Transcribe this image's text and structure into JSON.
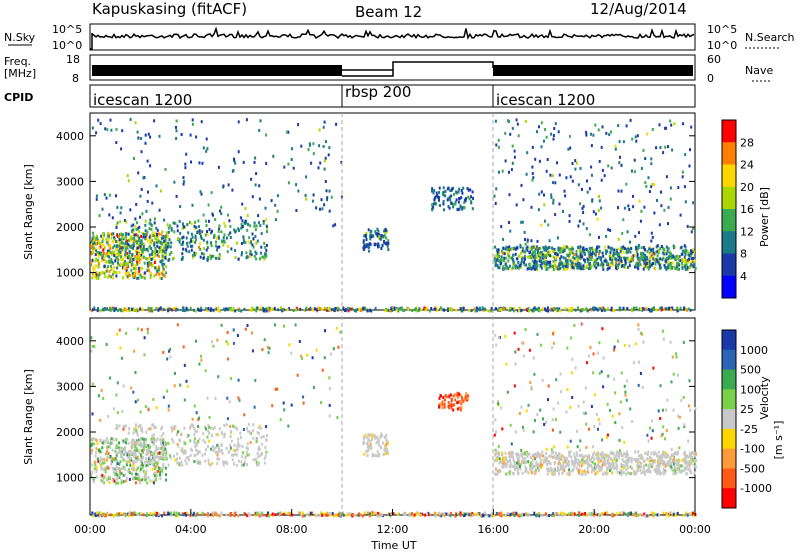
{
  "header": {
    "title": "Kapuskasing (fitACF)",
    "beam": "Beam 12",
    "date": "12/Aug/2014"
  },
  "noise_panel": {
    "left_label": "N.Sky",
    "right_label": "N.Search",
    "left_ticks": [
      "10^5",
      "10^0"
    ],
    "right_ticks": [
      "10^5",
      "10^0"
    ]
  },
  "freq_panel": {
    "left_label_1": "Freq.",
    "left_label_2": "[MHz]",
    "right_label": "Nave",
    "left_ticks": [
      "18",
      "8"
    ],
    "right_ticks": [
      "60",
      "0"
    ]
  },
  "cpid": {
    "label": "CPID",
    "segments": [
      {
        "name": "icescan 1200",
        "start_h": 0,
        "end_h": 10
      },
      {
        "name": "rbsp 200",
        "start_h": 10,
        "end_h": 16
      },
      {
        "name": "icescan 1200",
        "start_h": 16,
        "end_h": 24
      }
    ]
  },
  "x_axis": {
    "label": "Time UT",
    "ticks": [
      "00:00",
      "04:00",
      "08:00",
      "12:00",
      "16:00",
      "20:00",
      "00:00"
    ]
  },
  "chart_data": [
    {
      "type": "heatmap",
      "title": "",
      "ylabel": "Slant Range [km]",
      "xlabel": "Time UT",
      "ylim": [
        180,
        4500
      ],
      "xlim": [
        0,
        24
      ],
      "y_ticks": [
        "1000",
        "2000",
        "3000",
        "4000"
      ],
      "colorbar": {
        "label": "Power [dB]",
        "ticks": [
          "28",
          "24",
          "20",
          "16",
          "12",
          "8",
          "4"
        ],
        "colors": [
          "#ff0000",
          "#ff7f00",
          "#ffd700",
          "#a8d800",
          "#3caa50",
          "#1a7a88",
          "#1a3aaa",
          "#0000ff"
        ]
      }
    },
    {
      "type": "heatmap",
      "title": "",
      "ylabel": "Slant Range [km]",
      "xlabel": "Time UT",
      "ylim": [
        180,
        4500
      ],
      "xlim": [
        0,
        24
      ],
      "y_ticks": [
        "1000",
        "2000",
        "3000",
        "4000"
      ],
      "colorbar": {
        "label": "Velocity",
        "unit": "[m s⁻¹]",
        "ticks": [
          "1000",
          "500",
          "100",
          "25",
          "-25",
          "-100",
          "-500",
          "-1000"
        ],
        "colors": [
          "#1a3aaa",
          "#2a64b4",
          "#3caa50",
          "#7ad24a",
          "#c8c8c8",
          "#ffd700",
          "#ff9a3a",
          "#ff5a1a",
          "#ff0000"
        ]
      }
    }
  ]
}
